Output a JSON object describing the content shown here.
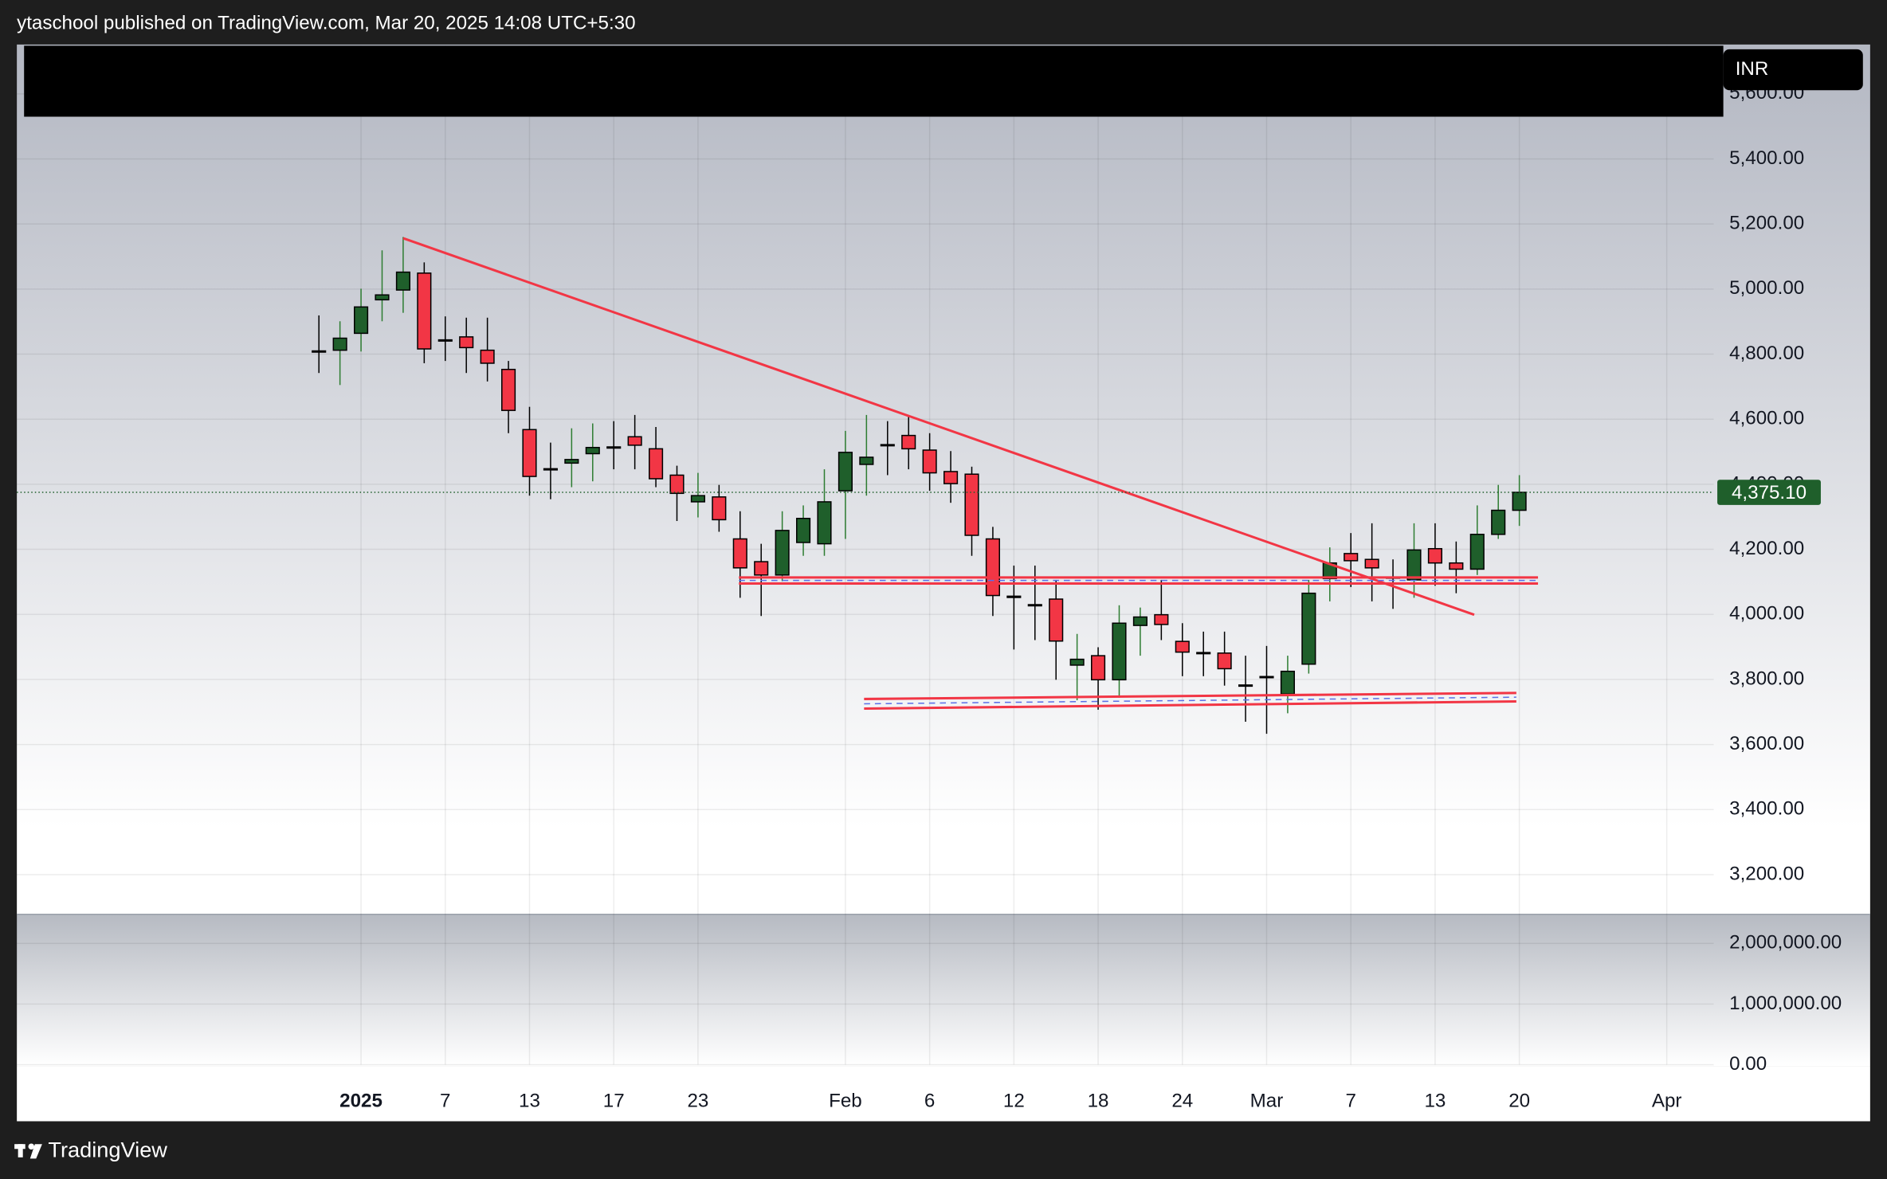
{
  "header": {
    "text": "ytaschool published on TradingView.com, Mar 20, 2025 14:08 UTC+5:30"
  },
  "currency": "INR",
  "footer": {
    "brand": "TradingView"
  },
  "chart_data": {
    "type": "candlestick",
    "categories": [
      null,
      null,
      "2025",
      null,
      null,
      null,
      "7",
      null,
      null,
      null,
      "13",
      null,
      null,
      null,
      "17",
      null,
      null,
      null,
      "23",
      null,
      null,
      null,
      null,
      null,
      null,
      "Feb",
      null,
      null,
      null,
      "6",
      null,
      null,
      null,
      "12",
      null,
      null,
      null,
      "18",
      null,
      null,
      null,
      "24",
      null,
      null,
      null,
      "Mar",
      null,
      null,
      null,
      "7",
      null,
      null,
      null,
      "13",
      null,
      null,
      null,
      "20",
      null,
      null,
      null,
      null,
      null,
      null,
      "Apr"
    ],
    "open": [
      4808,
      4812,
      4864,
      4967,
      4997,
      5049,
      4842,
      4853,
      4812,
      4753,
      4568,
      4446,
      4465,
      4494,
      4513,
      4546,
      4509,
      4428,
      4346,
      4361,
      4232,
      4162,
      4121,
      4221,
      4217,
      4380,
      4461,
      4520,
      4550,
      4505,
      4439,
      4431,
      4232,
      4054,
      4028,
      4047,
      3844,
      3873,
      3799,
      3966,
      3999,
      3917,
      3881,
      3881,
      3781,
      3807,
      3755,
      3847,
      4110,
      4187,
      4169,
      4113,
      4106,
      4202,
      4158,
      4139,
      4246,
      4320,
      null,
      null,
      null,
      null,
      null,
      null,
      null
    ],
    "high": [
      4919,
      4901,
      5001,
      5119,
      5160,
      5082,
      4916,
      4912,
      4912,
      4779,
      4638,
      4528,
      4572,
      4587,
      4594,
      4613,
      4576,
      4457,
      4435,
      4398,
      4317,
      4217,
      4317,
      4335,
      4446,
      4564,
      4613,
      4594,
      4613,
      4557,
      4502,
      4454,
      4269,
      4150,
      4150,
      4106,
      3940,
      3899,
      4028,
      4021,
      4106,
      3973,
      3947,
      3947,
      3873,
      3903,
      3873,
      4106,
      4206,
      4250,
      4280,
      4169,
      4280,
      4280,
      4224,
      4335,
      4398,
      4428,
      null,
      null,
      null,
      null,
      null,
      null,
      null
    ],
    "low": [
      4742,
      4705,
      4808,
      4901,
      4927,
      4772,
      4779,
      4742,
      4716,
      4557,
      4365,
      4354,
      4391,
      4409,
      4446,
      4446,
      4391,
      4287,
      4298,
      4254,
      4051,
      3995,
      4102,
      4180,
      4180,
      4232,
      4365,
      4428,
      4446,
      4380,
      4343,
      4180,
      3995,
      3892,
      3921,
      3799,
      3736,
      3707,
      3744,
      3873,
      3921,
      3810,
      3810,
      3781,
      3670,
      3633,
      3696,
      3818,
      4040,
      4084,
      4040,
      4017,
      4051,
      4088,
      4065,
      4121,
      4232,
      4272,
      null,
      null,
      null,
      null,
      null,
      null,
      null
    ],
    "close": [
      4808,
      4849,
      4945,
      4982,
      5052,
      4816,
      4842,
      4820,
      4772,
      4627,
      4424,
      4446,
      4476,
      4513,
      4513,
      4520,
      4417,
      4372,
      4365,
      4291,
      4143,
      4121,
      4258,
      4295,
      4346,
      4498,
      4483,
      4520,
      4509,
      4435,
      4402,
      4243,
      4058,
      4054,
      4028,
      3918,
      3862,
      3799,
      3973,
      3992,
      3969,
      3884,
      3881,
      3833,
      3781,
      3807,
      3825,
      4065,
      4158,
      4165,
      4143,
      4113,
      4198,
      4158,
      4139,
      4246,
      4320,
      4375.1,
      null,
      null,
      null,
      null,
      null,
      null,
      null
    ],
    "up_color": "#1f5f2b",
    "down_color": "#f23645",
    "ylim": [
      3078,
      5748
    ],
    "yticks": [
      {
        "value": 3200,
        "label": "3,200.00"
      },
      {
        "value": 3400,
        "label": "3,400.00"
      },
      {
        "value": 3600,
        "label": "3,600.00"
      },
      {
        "value": 3800,
        "label": "3,800.00"
      },
      {
        "value": 4000,
        "label": "4,000.00"
      },
      {
        "value": 4200,
        "label": "4,200.00"
      },
      {
        "value": 4400,
        "label": "4,400.00"
      },
      {
        "value": 4600,
        "label": "4,600.00"
      },
      {
        "value": 4800,
        "label": "4,800.00"
      },
      {
        "value": 5000,
        "label": "5,000.00"
      },
      {
        "value": 5200,
        "label": "5,200.00"
      },
      {
        "value": 5400,
        "label": "5,400.00"
      },
      {
        "value": 5600,
        "label": "5,600.00"
      }
    ],
    "grid": true,
    "last_price": 4375.1,
    "last_price_label": "4,375.10",
    "volume_pane": {
      "ylim": [
        0,
        2480000
      ],
      "yticks": [
        {
          "value": 0,
          "label": "0.00"
        },
        {
          "value": 1000000,
          "label": "1,000,000.00"
        },
        {
          "value": 2000000,
          "label": "2,000,000.00"
        }
      ]
    }
  }
}
